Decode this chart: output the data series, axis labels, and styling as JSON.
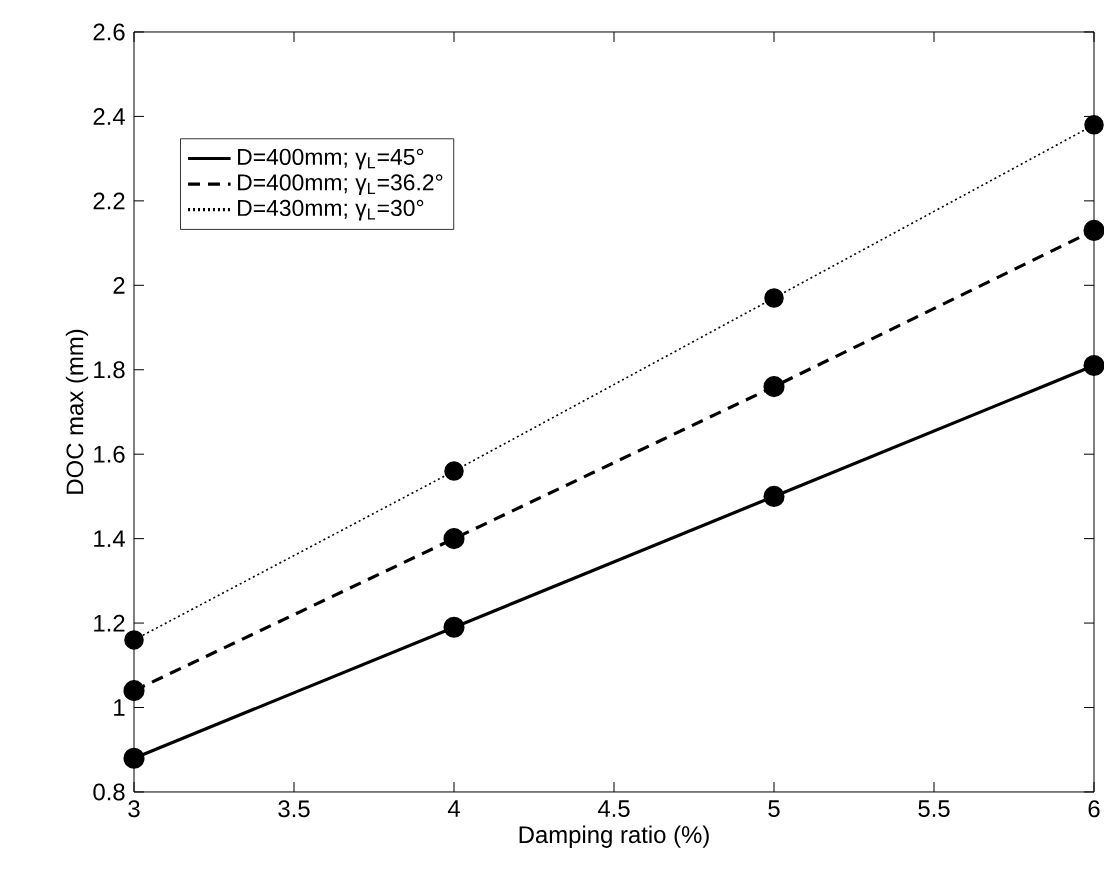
{
  "chart_data": {
    "type": "line",
    "xlabel": "Damping ratio (%)",
    "ylabel": "DOC max (mm)",
    "x": [
      3,
      4,
      5,
      6
    ],
    "series": [
      {
        "name": "D=400mm; γ$_{L}$=45°",
        "color": "#000000",
        "line_style": "solid",
        "values": [
          0.88,
          1.19,
          1.5,
          1.81
        ]
      },
      {
        "name": "D=400mm; γ$_{L}$=36.2°",
        "color": "#000000",
        "line_style": "dashed",
        "values": [
          1.04,
          1.4,
          1.76,
          2.13
        ]
      },
      {
        "name": "D=430mm; γ$_{L}$=30°",
        "color": "#000000",
        "line_style": "dotted",
        "values": [
          1.16,
          1.56,
          1.97,
          2.38
        ]
      }
    ],
    "xlim": [
      3,
      6
    ],
    "xticks": [
      3,
      3.5,
      4,
      4.5,
      5,
      5.5,
      6
    ],
    "ylim": [
      0.8,
      2.6
    ],
    "yticks": [
      0.8,
      1,
      1.2,
      1.4,
      1.6,
      1.8,
      2,
      2.2,
      2.4,
      2.6
    ],
    "marker": "circle",
    "legend": "top left",
    "grid": false
  }
}
